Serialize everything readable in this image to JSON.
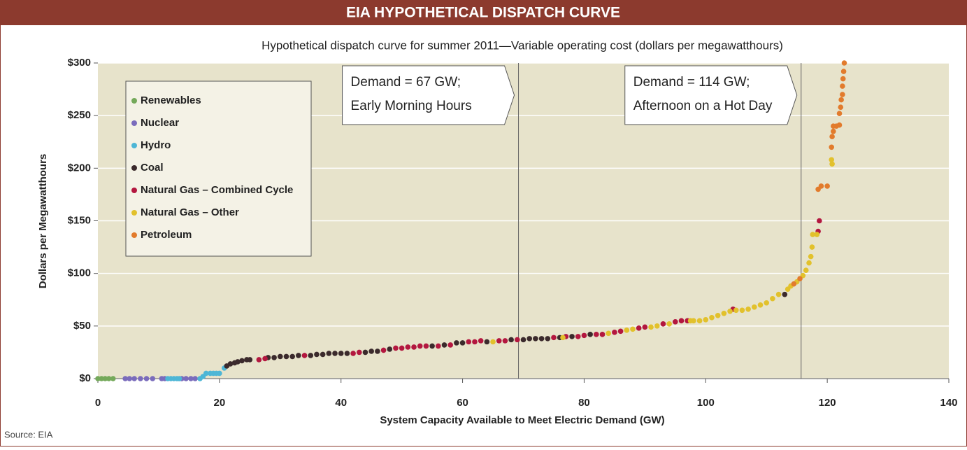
{
  "chart_data": {
    "type": "scatter",
    "title": "EIA HYPOTHETICAL DISPATCH CURVE",
    "subtitle": "Hypothetical dispatch curve for summer 2011—Variable operating cost (dollars per megawatthours)",
    "x_label": "System Capacity Available to Meet Electric Demand (GW)",
    "y_label": "Dollars per Megawatthours",
    "source": "Source: EIA",
    "xlim": [
      0,
      140
    ],
    "ylim": [
      0,
      300
    ],
    "xticks": [
      0,
      20,
      40,
      60,
      80,
      100,
      120,
      140
    ],
    "yticks": [
      {
        "value": 0,
        "label": "$0"
      },
      {
        "value": 50,
        "label": "$50"
      },
      {
        "value": 100,
        "label": "$100"
      },
      {
        "value": 150,
        "label": "$150"
      },
      {
        "value": 200,
        "label": "$200"
      },
      {
        "value": 250,
        "label": "$250"
      },
      {
        "value": 300,
        "label": "$300"
      }
    ],
    "legend_position": "upper left",
    "annotations": [
      {
        "x": 69.2,
        "lines": [
          "Demand = 67 GW;",
          "Early Morning Hours"
        ]
      },
      {
        "x": 115.7,
        "lines": [
          "Demand = 114 GW;",
          "Afternoon on a Hot Day"
        ]
      }
    ],
    "series": [
      {
        "name": "Renewables",
        "color": "#74a95a",
        "x": [
          0,
          0.6,
          1.2,
          1.8,
          2.5
        ],
        "values": [
          0,
          0,
          0,
          0,
          0
        ]
      },
      {
        "name": "Nuclear",
        "color": "#7a6cbc",
        "x": [
          4.5,
          5.2,
          6,
          7,
          8,
          9,
          10.5,
          11,
          13.8,
          14.5,
          15.3,
          16
        ],
        "values": [
          0,
          0,
          0,
          0,
          0,
          0,
          0,
          0,
          0,
          0,
          0,
          0
        ]
      },
      {
        "name": "Hydro",
        "color": "#4db6d6",
        "x": [
          11.5,
          12,
          12.5,
          13,
          13.4,
          16.8,
          17.3,
          17.8,
          18.5,
          19,
          19.5,
          20,
          20.8
        ],
        "values": [
          0,
          0,
          0,
          0,
          0,
          0,
          2,
          5,
          5,
          5,
          5,
          5,
          10
        ]
      },
      {
        "name": "Coal",
        "color": "#3b2a2c",
        "x": [
          21.2,
          21.8,
          22.5,
          23,
          23.7,
          24.5,
          25,
          28,
          29,
          30,
          31,
          32,
          33,
          35,
          36,
          37,
          38,
          39,
          40,
          41,
          44,
          45,
          46,
          48,
          55,
          57,
          59,
          60,
          64,
          68,
          70,
          71,
          72,
          73,
          74,
          76,
          78,
          81,
          113
        ],
        "values": [
          12,
          14,
          15,
          16,
          17,
          18,
          18,
          20,
          20,
          21,
          21,
          21,
          22,
          22,
          23,
          23,
          24,
          24,
          24,
          24,
          25,
          26,
          26,
          28,
          31,
          32,
          34,
          34,
          35,
          37,
          37,
          38,
          38,
          38,
          38,
          39,
          40,
          42,
          80
        ]
      },
      {
        "name": "Natural Gas – Combined Cycle",
        "color": "#b3173f",
        "x": [
          26.5,
          27.5,
          34,
          42,
          43,
          47,
          49,
          50,
          51,
          52,
          53,
          54,
          56,
          58,
          61,
          62,
          63,
          66,
          67,
          69,
          75,
          77,
          79,
          80,
          82,
          83,
          85,
          86,
          89,
          90,
          93,
          95,
          96,
          97,
          104.5,
          118.5,
          118.7
        ],
        "values": [
          18,
          19,
          22,
          24,
          25,
          27,
          29,
          29,
          30,
          30,
          31,
          31,
          31,
          32,
          35,
          35,
          36,
          36,
          36,
          37,
          39,
          40,
          40,
          41,
          42,
          42,
          44,
          45,
          48,
          49,
          52,
          54,
          55,
          55,
          66,
          140,
          150
        ]
      },
      {
        "name": "Natural Gas – Other",
        "color": "#e2c12c",
        "x": [
          65,
          76.5,
          84,
          87,
          88,
          91,
          92,
          94,
          97.5,
          98,
          99,
          100,
          101,
          102,
          103,
          104,
          105,
          106,
          107,
          108,
          109,
          110,
          111,
          112,
          113.5,
          114,
          115,
          116,
          116.5,
          117,
          117.3,
          117.5,
          117.6,
          118.3,
          120.7,
          120.8
        ],
        "values": [
          35,
          39,
          43,
          46,
          47,
          49,
          50,
          52,
          55,
          55,
          55,
          56,
          58,
          60,
          62,
          64,
          65,
          65,
          66,
          68,
          70,
          72,
          76,
          80,
          85,
          88,
          92,
          98,
          103,
          110,
          116,
          125,
          137,
          137,
          208,
          204
        ]
      },
      {
        "name": "Petroleum",
        "color": "#e27b2c",
        "x": [
          114.5,
          115.5,
          118.5,
          119,
          120,
          120.7,
          120.8,
          121,
          121,
          121.5,
          122,
          122,
          122.2,
          122.3,
          122.5,
          122.5,
          122.6,
          122.7,
          122.8
        ],
        "values": [
          90,
          95,
          180,
          183,
          183,
          220,
          230,
          235,
          240,
          240,
          241,
          252,
          258,
          265,
          270,
          278,
          285,
          292,
          300
        ]
      }
    ]
  }
}
